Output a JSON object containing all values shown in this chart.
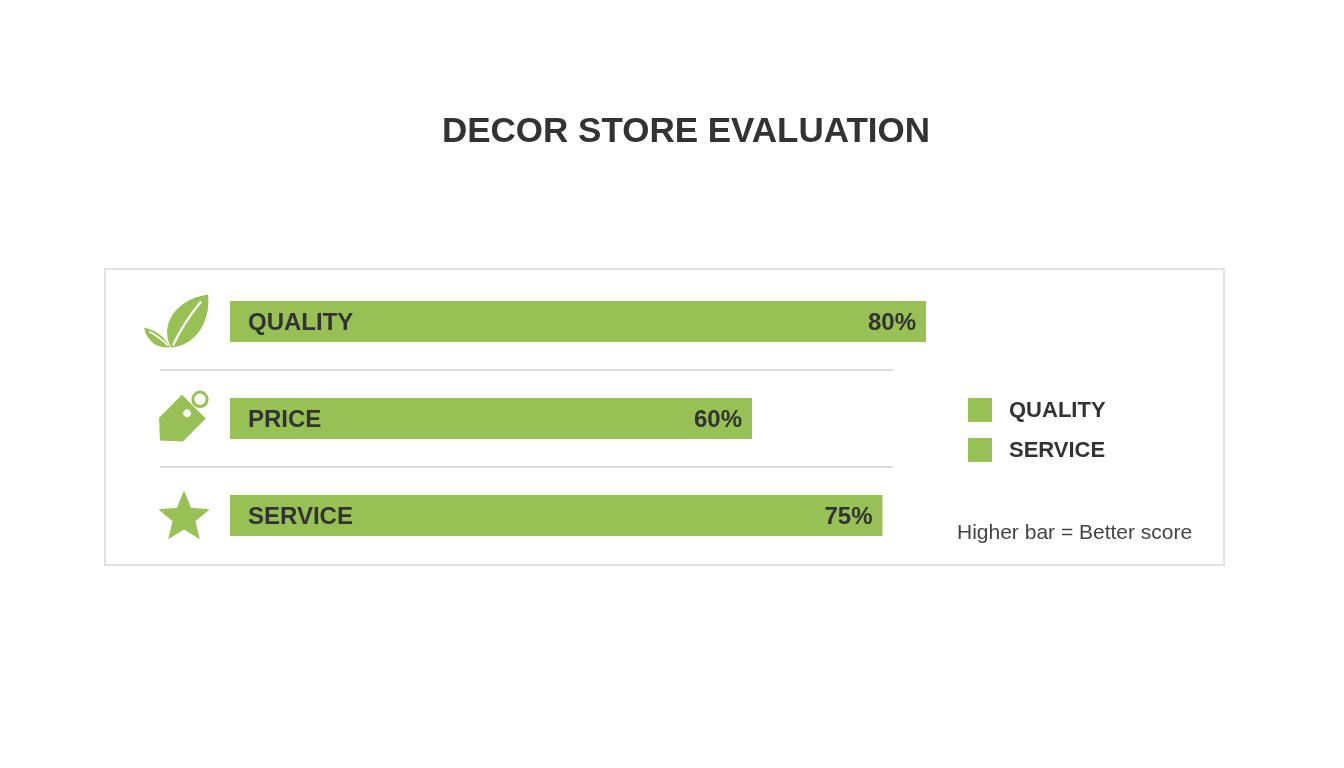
{
  "chart_data": {
    "type": "bar",
    "orientation": "horizontal",
    "stacked": true,
    "title": "DECOR STORE EVALUATION",
    "categories": [
      "QUALITY",
      "PRICE",
      "SERVICE"
    ],
    "series": [
      {
        "name": "QUALITY",
        "color": "#97c155",
        "values": [
          80,
          null,
          null
        ],
        "value_labels": [
          "80%",
          null,
          null
        ]
      },
      {
        "color": "#97c155",
        "values": [
          null,
          60,
          null
        ],
        "value_labels": [
          null,
          "60%",
          null
        ]
      },
      {
        "name": "SERVICE",
        "color": "#97c155",
        "values": [
          null,
          null,
          75
        ],
        "value_labels": [
          null,
          null,
          "75%"
        ]
      }
    ],
    "legend": "right",
    "grid": "y",
    "annotations": [
      "Higher bar = Better score"
    ]
  }
}
